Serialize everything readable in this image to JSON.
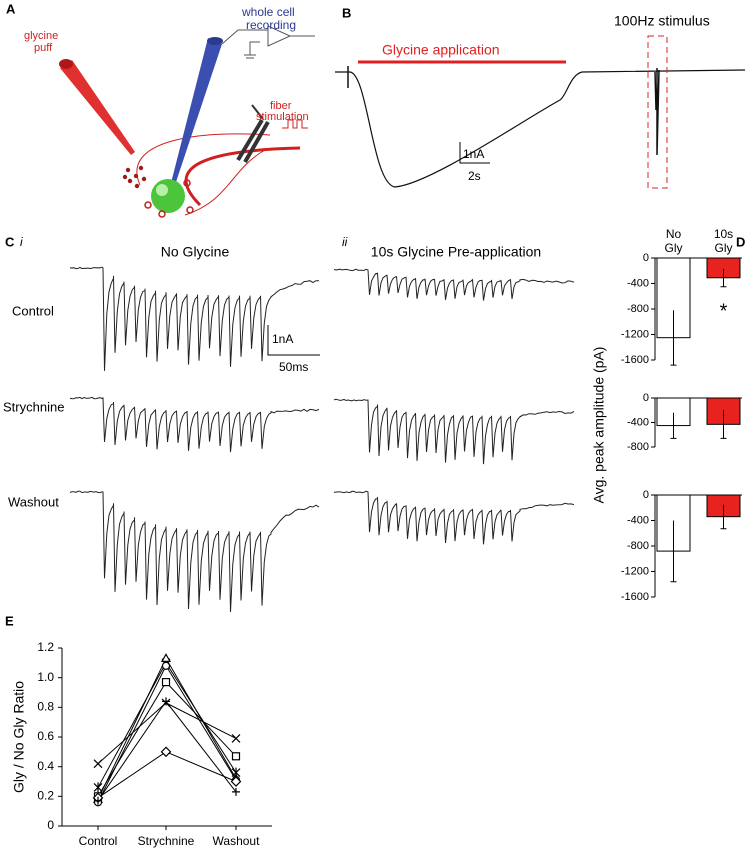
{
  "panels": {
    "a": {
      "label": "A",
      "glycine_puff": [
        "glycine",
        "puff"
      ],
      "whole_cell": [
        "whole cell",
        "recording"
      ],
      "fiber": [
        "fiber",
        "stimulation"
      ]
    },
    "b": {
      "label": "B",
      "glycine_application": "Glycine application",
      "stimulus": "100Hz stimulus",
      "scale_y": "1nA",
      "scale_x": "2s"
    },
    "c": {
      "label": "C",
      "i": "i",
      "ii": "ii",
      "title_i": "No Glycine",
      "title_ii": "10s Glycine Pre-application",
      "rows": [
        "Control",
        "Strychnine",
        "Washout"
      ],
      "scale_y": "1nA",
      "scale_x": "50ms"
    },
    "d": {
      "label": "D"
    },
    "e": {
      "label": "E"
    }
  },
  "chart_data": [
    {
      "type": "bar",
      "categories": [
        "No Gly",
        "10s Gly"
      ],
      "values": [
        -1250,
        -310
      ],
      "errors": [
        430,
        140
      ],
      "colors": [
        "#ffffff",
        "#e8231f"
      ],
      "ylim": [
        -1600,
        0
      ],
      "yticks": [
        0,
        -400,
        -800,
        -1200,
        -1600
      ],
      "annotation": "*"
    },
    {
      "type": "bar",
      "ylabel": "Avg. peak amplitude (pA)",
      "values": [
        -450,
        -430
      ],
      "errors": [
        210,
        230
      ],
      "colors": [
        "#ffffff",
        "#e8231f"
      ],
      "ylim": [
        -800,
        0
      ],
      "yticks": [
        0,
        -400,
        -800
      ]
    },
    {
      "type": "bar",
      "values": [
        -880,
        -340
      ],
      "errors": [
        480,
        190
      ],
      "colors": [
        "#ffffff",
        "#e8231f"
      ],
      "ylim": [
        -1600,
        0
      ],
      "yticks": [
        0,
        -400,
        -800,
        -1200,
        -1600
      ]
    },
    {
      "type": "line",
      "ylabel": "Gly / No Gly Ratio",
      "categories": [
        "Control",
        "Strychnine",
        "Washout"
      ],
      "ylim": [
        0,
        1.2
      ],
      "yticks": [
        0,
        0.2,
        0.4,
        0.6,
        0.8,
        {
          "value": 1,
          "label": "1.0"
        },
        1.2
      ],
      "series": [
        {
          "marker": "x",
          "color": "#000000",
          "values": [
            0.42,
            0.83,
            0.59
          ]
        },
        {
          "marker": "star",
          "color": "#000000",
          "values": [
            0.26,
            1.1,
            0.36
          ]
        },
        {
          "marker": "triangle",
          "color": "#000000",
          "values": [
            0.18,
            1.13,
            0.32
          ]
        },
        {
          "marker": "circle",
          "color": "#000000",
          "values": [
            0.16,
            1.08,
            0.31
          ]
        },
        {
          "marker": "square",
          "color": "#000000",
          "values": [
            0.2,
            0.97,
            0.47
          ]
        },
        {
          "marker": "diamond",
          "color": "#000000",
          "values": [
            0.19,
            0.5,
            0.3
          ]
        },
        {
          "marker": "plus",
          "color": "#000000",
          "values": [
            0.17,
            0.84,
            0.23
          ]
        }
      ]
    }
  ]
}
